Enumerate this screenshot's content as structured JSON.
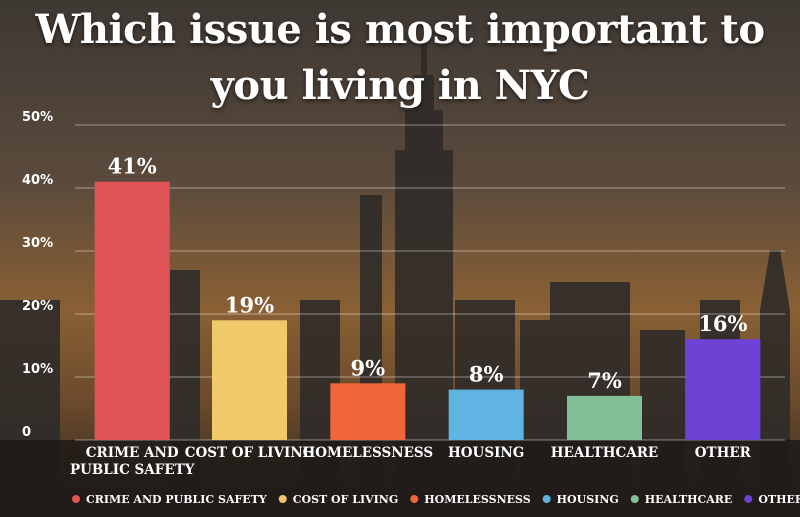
{
  "chart_data": {
    "type": "bar",
    "title": "Which issue is most important to you living in NYC",
    "xlabel": "",
    "ylabel": "",
    "ylim": [
      0,
      50
    ],
    "y_ticks": [
      "0",
      "10%",
      "20%",
      "30%",
      "40%",
      "50%"
    ],
    "y_tick_values": [
      0,
      10,
      20,
      30,
      40,
      50
    ],
    "grid": true,
    "legend_placement": "bottom",
    "categories": [
      "CRIME AND PUBLIC SAFETY",
      "COST OF LIVING",
      "HOMELESSNESS",
      "HOUSING",
      "HEALTHCARE",
      "OTHER"
    ],
    "category_labels": [
      [
        "CRIME AND",
        "PUBLIC SAFETY"
      ],
      [
        "COST OF LIVING"
      ],
      [
        "HOMELESSNESS"
      ],
      [
        "HOUSING"
      ],
      [
        "HEALTHCARE"
      ],
      [
        "OTHER"
      ]
    ],
    "values": [
      41,
      19,
      9,
      8,
      7,
      16
    ],
    "data_labels": [
      "41%",
      "19%",
      "9%",
      "8%",
      "7%",
      "16%"
    ],
    "colors": [
      "#df5457",
      "#efc96a",
      "#f0653a",
      "#5fb4e2",
      "#83c09a",
      "#6c43d4"
    ],
    "legend": [
      "CRIME AND PUBLIC SAFETY",
      "COST OF LIVING",
      "HOMELESSNESS",
      "HOUSING",
      "HEALTHCARE",
      "OTHER"
    ]
  }
}
